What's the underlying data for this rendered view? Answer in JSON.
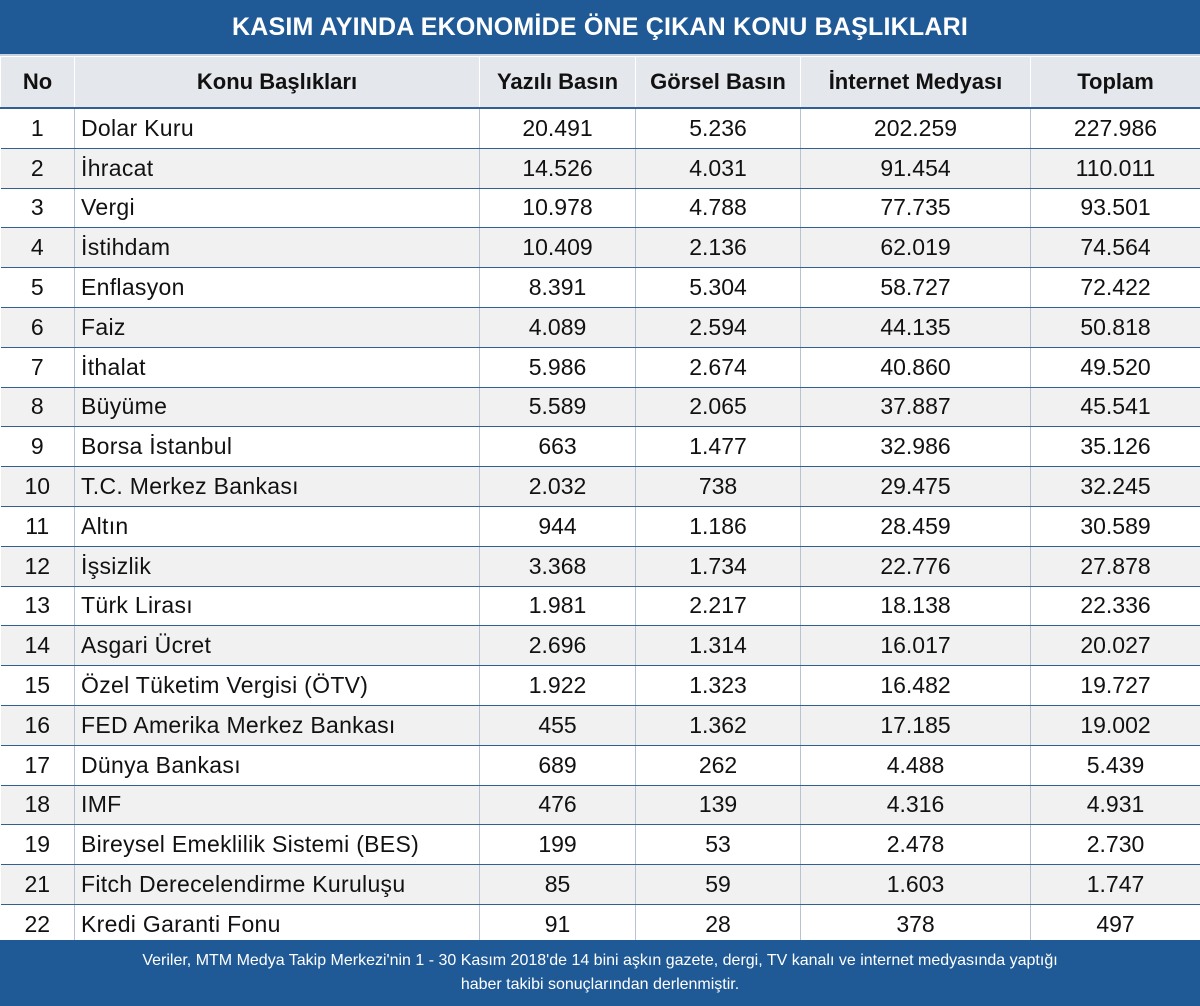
{
  "title": "KASIM AYINDA EKONOMİDE ÖNE ÇIKAN KONU BAŞLIKLARI",
  "headers": {
    "no": "No",
    "topic": "Konu Başlıkları",
    "yazili": "Yazılı Basın",
    "gorsel": "Görsel Basın",
    "internet": "İnternet Medyası",
    "toplam": "Toplam"
  },
  "rows": [
    {
      "no": "1",
      "topic": "Dolar Kuru",
      "yazili": "20.491",
      "gorsel": "5.236",
      "internet": "202.259",
      "toplam": "227.986"
    },
    {
      "no": "2",
      "topic": "İhracat",
      "yazili": "14.526",
      "gorsel": "4.031",
      "internet": "91.454",
      "toplam": "110.011"
    },
    {
      "no": "3",
      "topic": "Vergi",
      "yazili": "10.978",
      "gorsel": "4.788",
      "internet": "77.735",
      "toplam": "93.501"
    },
    {
      "no": "4",
      "topic": "İstihdam",
      "yazili": "10.409",
      "gorsel": "2.136",
      "internet": "62.019",
      "toplam": "74.564"
    },
    {
      "no": "5",
      "topic": "Enflasyon",
      "yazili": "8.391",
      "gorsel": "5.304",
      "internet": "58.727",
      "toplam": "72.422"
    },
    {
      "no": "6",
      "topic": "Faiz",
      "yazili": "4.089",
      "gorsel": "2.594",
      "internet": "44.135",
      "toplam": "50.818"
    },
    {
      "no": "7",
      "topic": "İthalat",
      "yazili": "5.986",
      "gorsel": "2.674",
      "internet": "40.860",
      "toplam": "49.520"
    },
    {
      "no": "8",
      "topic": "Büyüme",
      "yazili": "5.589",
      "gorsel": "2.065",
      "internet": "37.887",
      "toplam": "45.541"
    },
    {
      "no": "9",
      "topic": "Borsa İstanbul",
      "yazili": "663",
      "gorsel": "1.477",
      "internet": "32.986",
      "toplam": "35.126"
    },
    {
      "no": "10",
      "topic": "T.C. Merkez Bankası",
      "yazili": "2.032",
      "gorsel": "738",
      "internet": "29.475",
      "toplam": "32.245"
    },
    {
      "no": "11",
      "topic": "Altın",
      "yazili": "944",
      "gorsel": "1.186",
      "internet": "28.459",
      "toplam": "30.589"
    },
    {
      "no": "12",
      "topic": "İşsizlik",
      "yazili": "3.368",
      "gorsel": "1.734",
      "internet": "22.776",
      "toplam": "27.878"
    },
    {
      "no": "13",
      "topic": "Türk Lirası",
      "yazili": "1.981",
      "gorsel": "2.217",
      "internet": "18.138",
      "toplam": "22.336"
    },
    {
      "no": "14",
      "topic": "Asgari Ücret",
      "yazili": "2.696",
      "gorsel": "1.314",
      "internet": "16.017",
      "toplam": "20.027"
    },
    {
      "no": "15",
      "topic": "Özel Tüketim Vergisi (ÖTV)",
      "yazili": "1.922",
      "gorsel": "1.323",
      "internet": "16.482",
      "toplam": "19.727"
    },
    {
      "no": "16",
      "topic": "FED Amerika Merkez Bankası",
      "yazili": "455",
      "gorsel": "1.362",
      "internet": "17.185",
      "toplam": "19.002"
    },
    {
      "no": "17",
      "topic": "Dünya Bankası",
      "yazili": "689",
      "gorsel": "262",
      "internet": "4.488",
      "toplam": "5.439"
    },
    {
      "no": "18",
      "topic": "IMF",
      "yazili": "476",
      "gorsel": "139",
      "internet": "4.316",
      "toplam": "4.931"
    },
    {
      "no": "19",
      "topic": "Bireysel Emeklilik Sistemi (BES)",
      "yazili": "199",
      "gorsel": "53",
      "internet": "2.478",
      "toplam": "2.730"
    },
    {
      "no": "21",
      "topic": "Fitch Derecelendirme Kuruluşu",
      "yazili": "85",
      "gorsel": "59",
      "internet": "1.603",
      "toplam": "1.747"
    },
    {
      "no": "22",
      "topic": "Kredi Garanti Fonu",
      "yazili": "91",
      "gorsel": "28",
      "internet": "378",
      "toplam": "497"
    }
  ],
  "footer": {
    "line1": "Veriler, MTM Medya Takip Merkezi'nin 1 - 30 Kasım 2018'de 14 bini aşkın gazete, dergi, TV kanalı ve internet medyasında yaptığı",
    "line2": "haber takibi sonuçlarından derlenmiştir."
  },
  "colors": {
    "banner": "#1f5a96",
    "header_bg": "#e4e7eb",
    "row_alt": "#f1f1f1",
    "grid_line": "#2f5f93"
  }
}
